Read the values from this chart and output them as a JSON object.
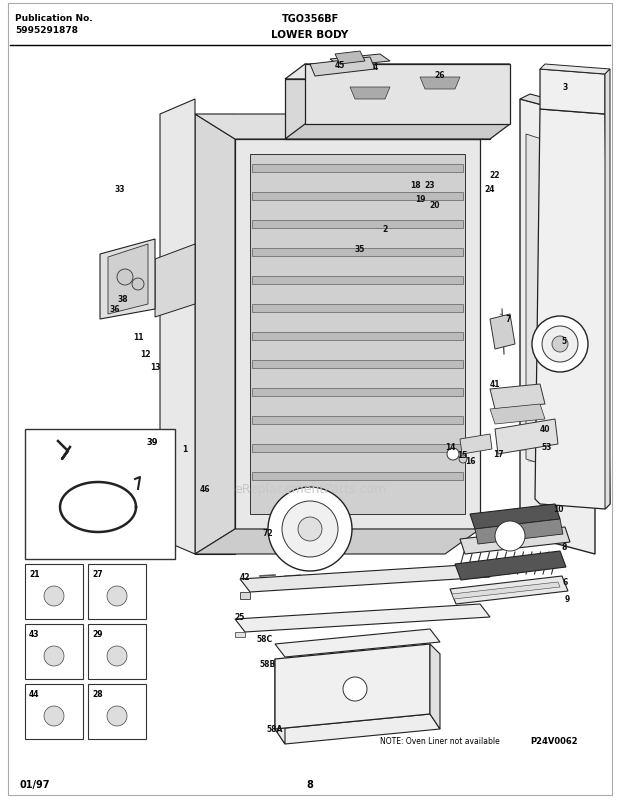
{
  "title_center": "TGO356BF",
  "title_sub": "LOWER BODY",
  "pub_label": "Publication No.",
  "pub_number": "5995291878",
  "footer_left": "01/97",
  "footer_center": "8",
  "note_text": "NOTE: Oven Liner not available",
  "diagram_ref": "P24V0062",
  "bg_color": "#ffffff",
  "border_color": "#000000",
  "text_color": "#000000",
  "fig_width": 6.2,
  "fig_height": 8.04,
  "dpi": 100,
  "watermark_text": "eReplacementParts.com",
  "watermark_color": "#c8c8c8"
}
